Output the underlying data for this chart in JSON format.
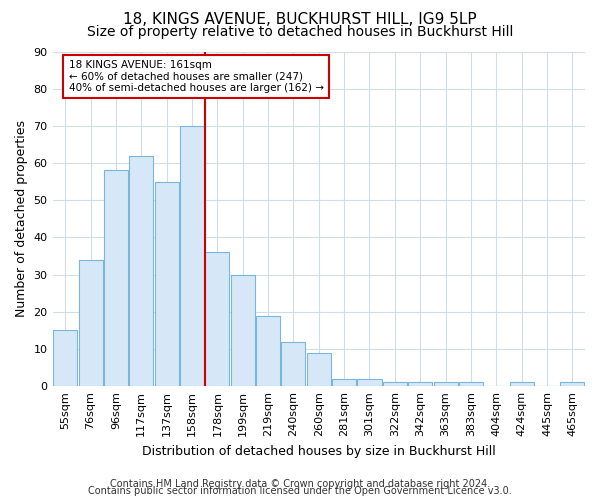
{
  "title1": "18, KINGS AVENUE, BUCKHURST HILL, IG9 5LP",
  "title2": "Size of property relative to detached houses in Buckhurst Hill",
  "xlabel": "Distribution of detached houses by size in Buckhurst Hill",
  "ylabel": "Number of detached properties",
  "categories": [
    "55sqm",
    "76sqm",
    "96sqm",
    "117sqm",
    "137sqm",
    "158sqm",
    "178sqm",
    "199sqm",
    "219sqm",
    "240sqm",
    "260sqm",
    "281sqm",
    "301sqm",
    "322sqm",
    "342sqm",
    "363sqm",
    "383sqm",
    "404sqm",
    "424sqm",
    "445sqm",
    "465sqm"
  ],
  "values": [
    15,
    34,
    58,
    62,
    55,
    70,
    36,
    30,
    19,
    12,
    9,
    2,
    2,
    1,
    1,
    1,
    1,
    0,
    1,
    0,
    1
  ],
  "bar_color": "#d6e8f7",
  "bar_edge_color": "#7ab6d9",
  "vline_x": 5.5,
  "vline_color": "#cc0000",
  "annotation_title": "18 KINGS AVENUE: 161sqm",
  "annotation_line1": "← 60% of detached houses are smaller (247)",
  "annotation_line2": "40% of semi-detached houses are larger (162) →",
  "annotation_box_color": "white",
  "annotation_box_edge": "#cc0000",
  "ylim": [
    0,
    90
  ],
  "yticks": [
    0,
    10,
    20,
    30,
    40,
    50,
    60,
    70,
    80,
    90
  ],
  "footer1": "Contains HM Land Registry data © Crown copyright and database right 2024.",
  "footer2": "Contains public sector information licensed under the Open Government Licence v3.0.",
  "background_color": "#ffffff",
  "plot_bg_color": "#ffffff",
  "title1_fontsize": 11,
  "title2_fontsize": 10,
  "tick_fontsize": 8,
  "label_fontsize": 9,
  "footer_fontsize": 7,
  "grid_color": "#d0dce8"
}
